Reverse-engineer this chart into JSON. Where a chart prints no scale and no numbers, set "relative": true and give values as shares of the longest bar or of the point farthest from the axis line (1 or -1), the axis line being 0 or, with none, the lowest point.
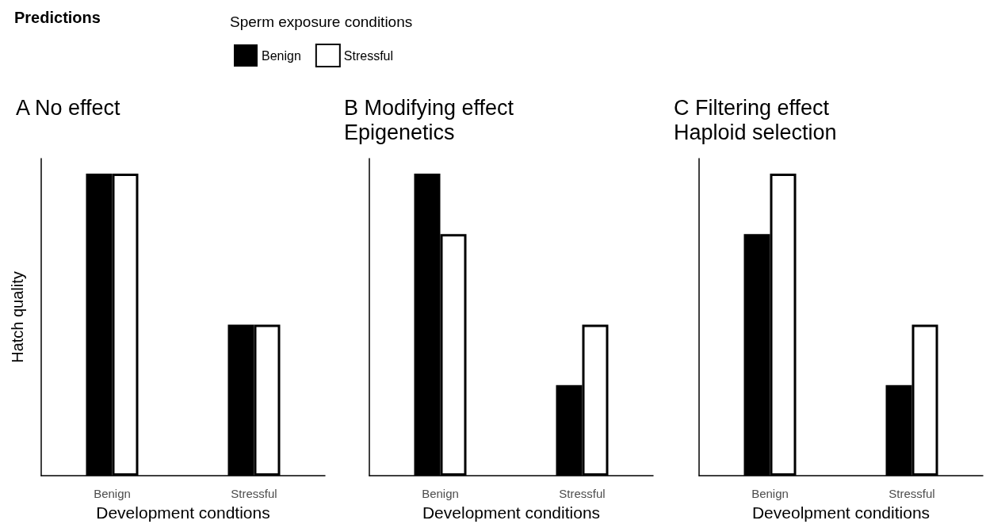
{
  "chart_data": [
    {
      "type": "bar",
      "title": "A No effect",
      "xlabel": "Development condtions",
      "ylabel": "Hatch quality",
      "legend_title": "Sperm exposure conditions",
      "annotations": [
        "Predictions"
      ],
      "categories": [
        "Benign",
        "Stressful"
      ],
      "relative": true,
      "legend": "top",
      "tick_labels": "x",
      "grid": false,
      "series": [
        {
          "name": "Benign",
          "color": "#000000",
          "values": [
            1,
            0.5
          ]
        },
        {
          "name": "Stressful",
          "color": "#ffffff",
          "values": [
            1,
            0.5
          ]
        }
      ]
    },
    {
      "type": "bar",
      "title": "B Modifying effect",
      "subtitle": "Epigenetics",
      "xlabel": "Development conditions",
      "categories": [
        "Benign",
        "Stressful"
      ],
      "relative": true,
      "tick_labels": "x",
      "grid": false,
      "series": [
        {
          "color": "#000000",
          "values": [
            1,
            0.3
          ]
        },
        {
          "color": "#ffffff",
          "values": [
            0.8,
            0.5
          ]
        }
      ]
    },
    {
      "type": "bar",
      "title": "C Filtering effect",
      "subtitle": "Haploid selection",
      "xlabel": "Deveolpment conditions",
      "categories": [
        "Benign",
        "Stressful"
      ],
      "relative": true,
      "tick_labels": "x",
      "grid": false,
      "series": [
        {
          "color": "#000000",
          "values": [
            0.8,
            0.3
          ]
        },
        {
          "color": "#ffffff",
          "values": [
            1,
            0.5
          ]
        }
      ]
    }
  ]
}
